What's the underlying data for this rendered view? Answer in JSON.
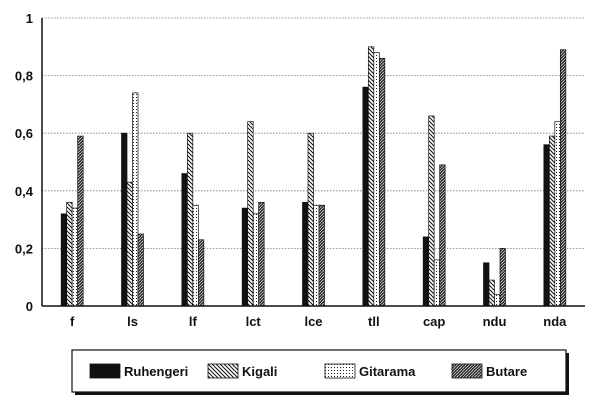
{
  "chart_data": {
    "type": "bar",
    "categories": [
      "f",
      "ls",
      "lf",
      "lct",
      "lce",
      "tll",
      "cap",
      "ndu",
      "nda"
    ],
    "series": [
      {
        "name": "Ruhengeri",
        "values": [
          0.32,
          0.6,
          0.46,
          0.34,
          0.36,
          0.76,
          0.24,
          0.15,
          0.56
        ]
      },
      {
        "name": "Kigali",
        "values": [
          0.36,
          0.43,
          0.6,
          0.64,
          0.6,
          0.9,
          0.66,
          0.09,
          0.59
        ]
      },
      {
        "name": "Gitarama",
        "values": [
          0.34,
          0.74,
          0.35,
          0.32,
          0.35,
          0.88,
          0.16,
          0.04,
          0.64
        ]
      },
      {
        "name": "Butare",
        "values": [
          0.59,
          0.25,
          0.23,
          0.36,
          0.35,
          0.86,
          0.49,
          0.2,
          0.89
        ]
      }
    ],
    "ylim": [
      0,
      1
    ],
    "yticks": [
      "0",
      "0,2",
      "0,4",
      "0,6",
      "0,8",
      "1"
    ],
    "ytick_values": [
      0,
      0.2,
      0.4,
      0.6,
      0.8,
      1.0
    ],
    "grid": true,
    "legend": "bottom",
    "title": "",
    "xlabel": "",
    "ylabel": ""
  }
}
